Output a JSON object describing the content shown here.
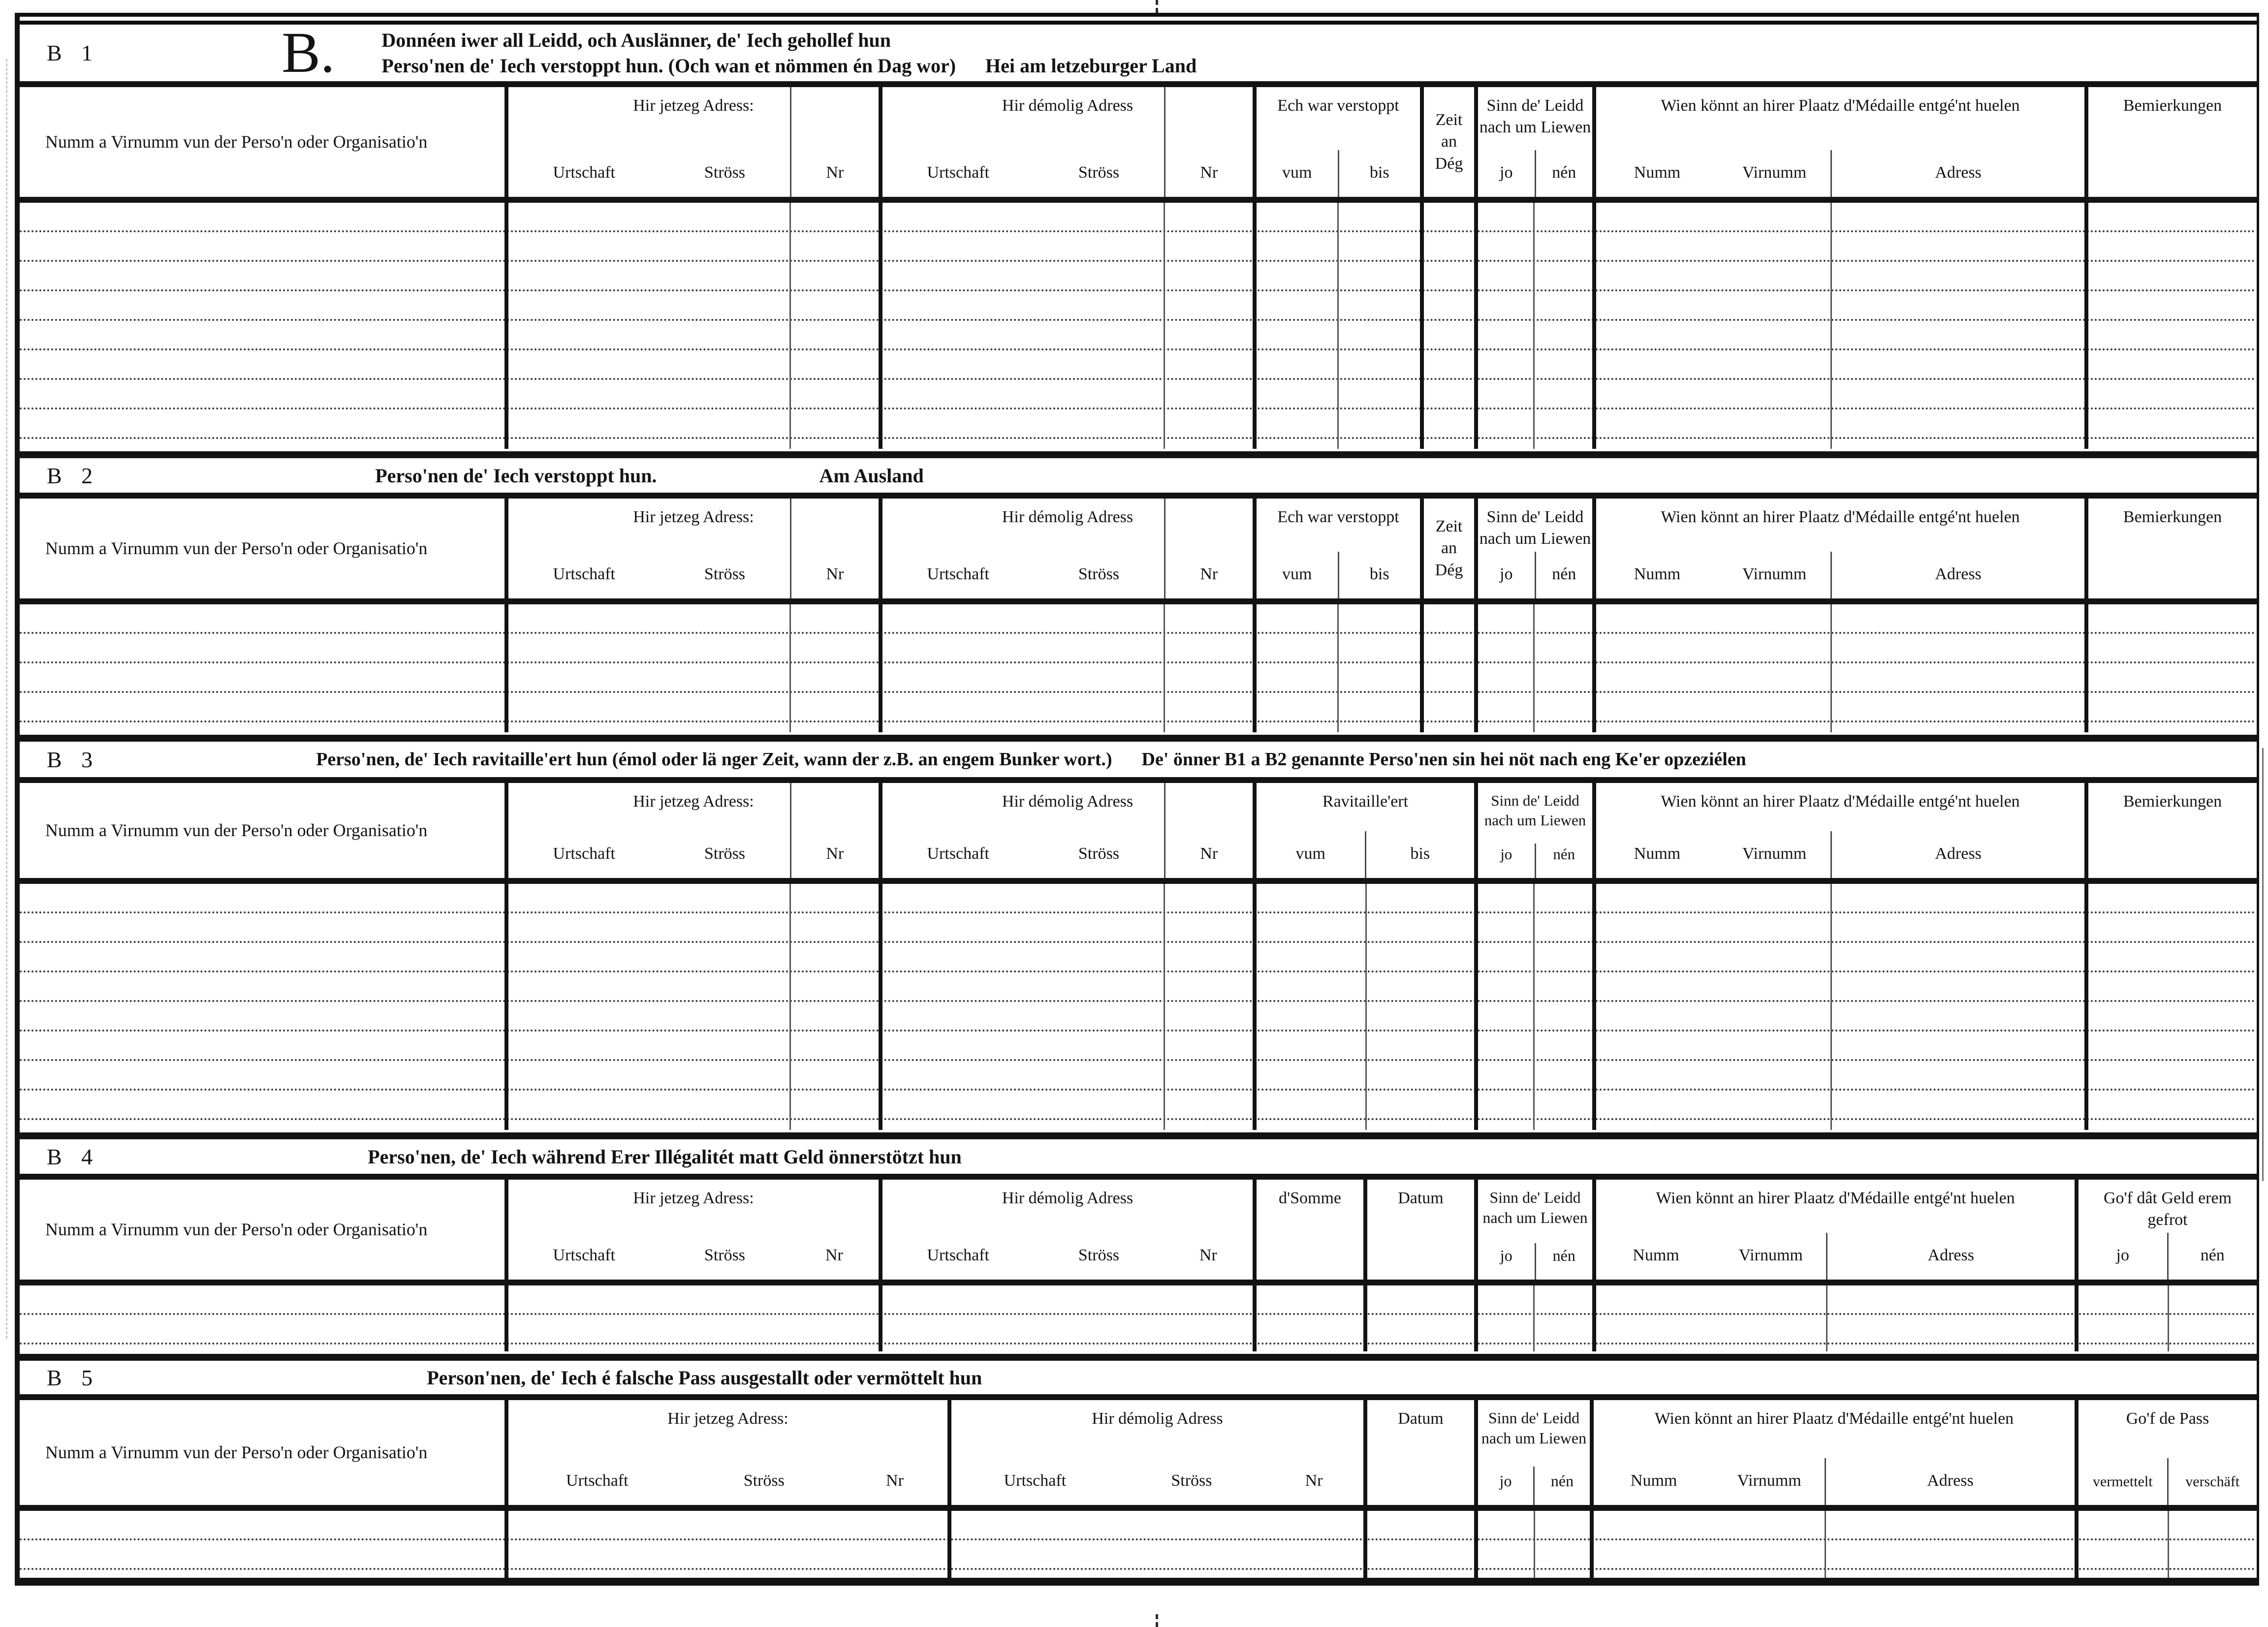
{
  "labels": {
    "person": "Numm a Virnumm vun der Perso'n oder Organisatio'n",
    "current_address": "Hir jetzeg Adress:",
    "former_address": "Hir démolig Adress",
    "urtschaft": "Urtschaft",
    "stross": "Ströss",
    "nr": "Nr",
    "vum": "vum",
    "bis": "bis",
    "jo": "jo",
    "nen": "nén",
    "alive": "Sinn de' Leidd nach um Liewen",
    "medal": "Wien könnt an hirer Plaatz d'Médaille entgé'nt huelen",
    "numm": "Numm",
    "virnumm": "Virnumm",
    "adress": "Adress",
    "bemierkungen": "Bemierkungen",
    "datum": "Datum"
  },
  "sections": {
    "b1": {
      "id": "B 1",
      "big_letter": "B.",
      "title_line1": "Donnéen iwer all Leidd, och Auslänner, de' Iech gehollef hun",
      "title_line2": "Perso'nen de' Iech verstoppt hun. (Och wan et nömmen én Dag wor)",
      "title_note": "Hei am letzeburger Land",
      "verstoppt": "Ech war verstoppt",
      "zeit": "Zeit an Dég",
      "rows": 8
    },
    "b2": {
      "id": "B 2",
      "title": "Perso'nen de' Iech verstoppt hun.",
      "title_note": "Am Ausland",
      "verstoppt": "Ech war verstoppt",
      "zeit": "Zeit an Dég",
      "rows": 4
    },
    "b3": {
      "id": "B 3",
      "title": "Perso'nen, de' Iech ravitaille'ert hun (émol oder lä nger Zeit, wann der z.B. an engem Bunker wort.)",
      "title_note": "De' önner B1 a B2 genannte Perso'nen sin hei nöt nach eng Ke'er opzeziélen",
      "ravitailleert": "Ravitaille'ert",
      "rows": 8
    },
    "b4": {
      "id": "B 4",
      "title": "Perso'nen, de' Iech während Erer Illégalitét matt Geld önnerstötzt hun",
      "somme": "d'Somme",
      "geld_gefrot": "Go'f dât Geld erem gefrot",
      "rows": 2
    },
    "b5": {
      "id": "B 5",
      "title": "Person'nen, de' Iech é falsche Pass ausgestallt oder vermöttelt hun",
      "pass": "Go'f de Pass",
      "vermettelt": "vermettelt",
      "verschaft": "verschäft",
      "rows": 2
    }
  }
}
